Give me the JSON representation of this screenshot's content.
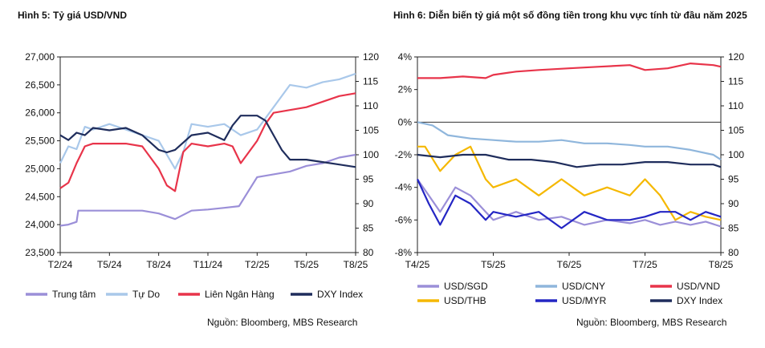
{
  "chart_data": [
    {
      "id": "h5",
      "type": "line",
      "title": "Hình 5: Tỷ giá USD/VND",
      "source": "Nguồn: Bloomberg, MBS Research",
      "x_axis": {
        "ticks": [
          "T2/24",
          "T5/24",
          "T8/24",
          "T11/24",
          "T2/25",
          "T5/25",
          "T8/25"
        ],
        "range": [
          0,
          18
        ]
      },
      "y_left": {
        "range": [
          23500,
          27000
        ],
        "ticks": [
          23500,
          24000,
          24500,
          25000,
          25500,
          26000,
          26500,
          27000
        ],
        "tick_labels": [
          "23,500",
          "24,000",
          "24,500",
          "25,000",
          "25,500",
          "26,000",
          "26,500",
          "27,000"
        ]
      },
      "y_right": {
        "range": [
          80,
          120
        ],
        "ticks": [
          80,
          85,
          90,
          95,
          100,
          105,
          110,
          115,
          120
        ]
      },
      "grid": false,
      "legend_position": "bottom",
      "series": [
        {
          "name": "Trung tâm",
          "color": "#9b8fd8",
          "axis": "left",
          "x": [
            0,
            0.5,
            1.0,
            1.1,
            2.0,
            3.0,
            4.0,
            5.0,
            6.0,
            7.0,
            8.0,
            9.0,
            10.0,
            10.9,
            12.0,
            13.0,
            14.0,
            15.0,
            16.0,
            17.0,
            18.0
          ],
          "y": [
            23980,
            24000,
            24050,
            24250,
            24250,
            24250,
            24250,
            24250,
            24200,
            24100,
            24250,
            24270,
            24300,
            24330,
            24850,
            24900,
            24950,
            25050,
            25100,
            25200,
            25250
          ]
        },
        {
          "name": "Tự Do",
          "color": "#a9c8ea",
          "axis": "left",
          "x": [
            0,
            0.5,
            1.0,
            1.5,
            2.0,
            3.0,
            4.0,
            5.0,
            6.0,
            7.0,
            7.5,
            8.0,
            9.0,
            10.0,
            11.0,
            12.0,
            13.0,
            14.0,
            15.0,
            16.0,
            17.0,
            18.0
          ],
          "y": [
            25100,
            25400,
            25350,
            25750,
            25700,
            25800,
            25700,
            25600,
            25500,
            25000,
            25300,
            25800,
            25750,
            25800,
            25600,
            25700,
            26100,
            26500,
            26450,
            26550,
            26600,
            26700
          ]
        },
        {
          "name": "Liên Ngân Hàng",
          "color": "#e8344a",
          "axis": "left",
          "x": [
            0,
            0.5,
            1.0,
            1.5,
            2.0,
            3.0,
            4.0,
            5.0,
            6.0,
            6.5,
            7.0,
            7.5,
            8.0,
            9.0,
            10.0,
            10.5,
            11.0,
            12.0,
            12.5,
            13.0,
            14.0,
            15.0,
            16.0,
            17.0,
            18.0
          ],
          "y": [
            24650,
            24750,
            25100,
            25400,
            25450,
            25450,
            25450,
            25400,
            25000,
            24700,
            24600,
            25300,
            25450,
            25400,
            25450,
            25400,
            25100,
            25500,
            25800,
            26000,
            26050,
            26100,
            26200,
            26300,
            26350
          ]
        },
        {
          "name": "DXY Index",
          "color": "#1f2d5c",
          "axis": "right",
          "x": [
            0,
            0.5,
            1.0,
            1.5,
            2.0,
            3.0,
            4.0,
            5.0,
            6.0,
            6.5,
            7.0,
            8.0,
            9.0,
            10.0,
            10.5,
            11.0,
            12.0,
            12.5,
            13.0,
            13.5,
            14.0,
            15.0,
            16.0,
            17.0,
            18.0
          ],
          "y": [
            104,
            103,
            104.5,
            104,
            105.5,
            105,
            105.5,
            104,
            101,
            100.5,
            101,
            104,
            104.5,
            103,
            106,
            108,
            108,
            107,
            104,
            101,
            99,
            99,
            98.5,
            98,
            97.5
          ]
        }
      ]
    },
    {
      "id": "h6",
      "type": "line",
      "title": "Hình 6: Diễn biến tỷ giá một số đồng tiền trong khu vực tính từ đầu năm 2025",
      "source": "Nguồn: Bloomberg, MBS Research",
      "x_axis": {
        "ticks": [
          "T4/25",
          "T5/25",
          "T6/25",
          "T7/25",
          "T8/25"
        ],
        "range": [
          0,
          4
        ]
      },
      "y_left": {
        "range": [
          -8,
          4
        ],
        "ticks": [
          -8,
          -6,
          -4,
          -2,
          0,
          2,
          4
        ],
        "tick_labels": [
          "-8%",
          "-6%",
          "-4%",
          "-2%",
          "0%",
          "2%",
          "4%"
        ]
      },
      "y_right": {
        "range": [
          80,
          120
        ],
        "ticks": [
          80,
          85,
          90,
          95,
          100,
          105,
          110,
          115,
          120
        ]
      },
      "grid": false,
      "legend_position": "bottom",
      "series": [
        {
          "name": "USD/SGD",
          "color": "#9b8fd8",
          "axis": "left",
          "x": [
            0,
            0.15,
            0.3,
            0.5,
            0.7,
            0.9,
            1.0,
            1.3,
            1.6,
            1.9,
            2.2,
            2.5,
            2.8,
            3.0,
            3.2,
            3.4,
            3.6,
            3.8,
            4.0
          ],
          "y": [
            -3.5,
            -4.5,
            -5.5,
            -4.0,
            -4.5,
            -5.5,
            -6.0,
            -5.5,
            -6.0,
            -5.8,
            -6.3,
            -6.0,
            -6.2,
            -6.0,
            -6.3,
            -6.1,
            -6.3,
            -6.1,
            -6.4
          ]
        },
        {
          "name": "USD/CNY",
          "color": "#8fb6dc",
          "axis": "left",
          "x": [
            0,
            0.2,
            0.4,
            0.7,
            1.0,
            1.3,
            1.6,
            1.9,
            2.2,
            2.5,
            2.8,
            3.0,
            3.3,
            3.6,
            3.9,
            4.0
          ],
          "y": [
            0.0,
            -0.2,
            -0.8,
            -1.0,
            -1.1,
            -1.2,
            -1.2,
            -1.1,
            -1.3,
            -1.3,
            -1.4,
            -1.5,
            -1.5,
            -1.7,
            -2.0,
            -2.3
          ]
        },
        {
          "name": "USD/VND",
          "color": "#e8344a",
          "axis": "left",
          "x": [
            0,
            0.3,
            0.6,
            0.9,
            1.0,
            1.3,
            1.6,
            2.0,
            2.4,
            2.8,
            3.0,
            3.3,
            3.6,
            3.9,
            4.0
          ],
          "y": [
            2.7,
            2.7,
            2.8,
            2.7,
            2.9,
            3.1,
            3.2,
            3.3,
            3.4,
            3.5,
            3.2,
            3.3,
            3.6,
            3.5,
            3.4
          ]
        },
        {
          "name": "USD/THB",
          "color": "#f5b800",
          "axis": "left",
          "x": [
            0,
            0.1,
            0.3,
            0.5,
            0.7,
            0.9,
            1.0,
            1.3,
            1.6,
            1.9,
            2.2,
            2.5,
            2.8,
            3.0,
            3.2,
            3.4,
            3.6,
            3.8,
            4.0
          ],
          "y": [
            -1.5,
            -1.5,
            -3.0,
            -2.0,
            -1.5,
            -3.5,
            -4.0,
            -3.5,
            -4.5,
            -3.5,
            -4.5,
            -4.0,
            -4.5,
            -3.5,
            -4.5,
            -6.0,
            -5.5,
            -5.8,
            -6.0
          ]
        },
        {
          "name": "USD/MYR",
          "color": "#2426c4",
          "axis": "left",
          "x": [
            0,
            0.15,
            0.3,
            0.5,
            0.7,
            0.9,
            1.0,
            1.3,
            1.6,
            1.9,
            2.2,
            2.5,
            2.8,
            3.0,
            3.2,
            3.4,
            3.6,
            3.8,
            4.0
          ],
          "y": [
            -3.5,
            -5.0,
            -6.3,
            -4.5,
            -5.0,
            -6.0,
            -5.5,
            -5.8,
            -5.5,
            -6.5,
            -5.5,
            -6.0,
            -6.0,
            -5.8,
            -5.5,
            -5.5,
            -6.0,
            -5.5,
            -5.8
          ]
        },
        {
          "name": "DXY Index",
          "color": "#1f2d5c",
          "axis": "right",
          "x": [
            0,
            0.3,
            0.6,
            0.9,
            1.2,
            1.5,
            1.8,
            2.1,
            2.4,
            2.7,
            3.0,
            3.3,
            3.6,
            3.9,
            4.0
          ],
          "y": [
            100,
            99.5,
            100,
            100,
            99,
            99,
            98.5,
            97.5,
            98,
            98,
            98.5,
            98.5,
            98,
            98,
            97.5
          ]
        }
      ]
    }
  ]
}
